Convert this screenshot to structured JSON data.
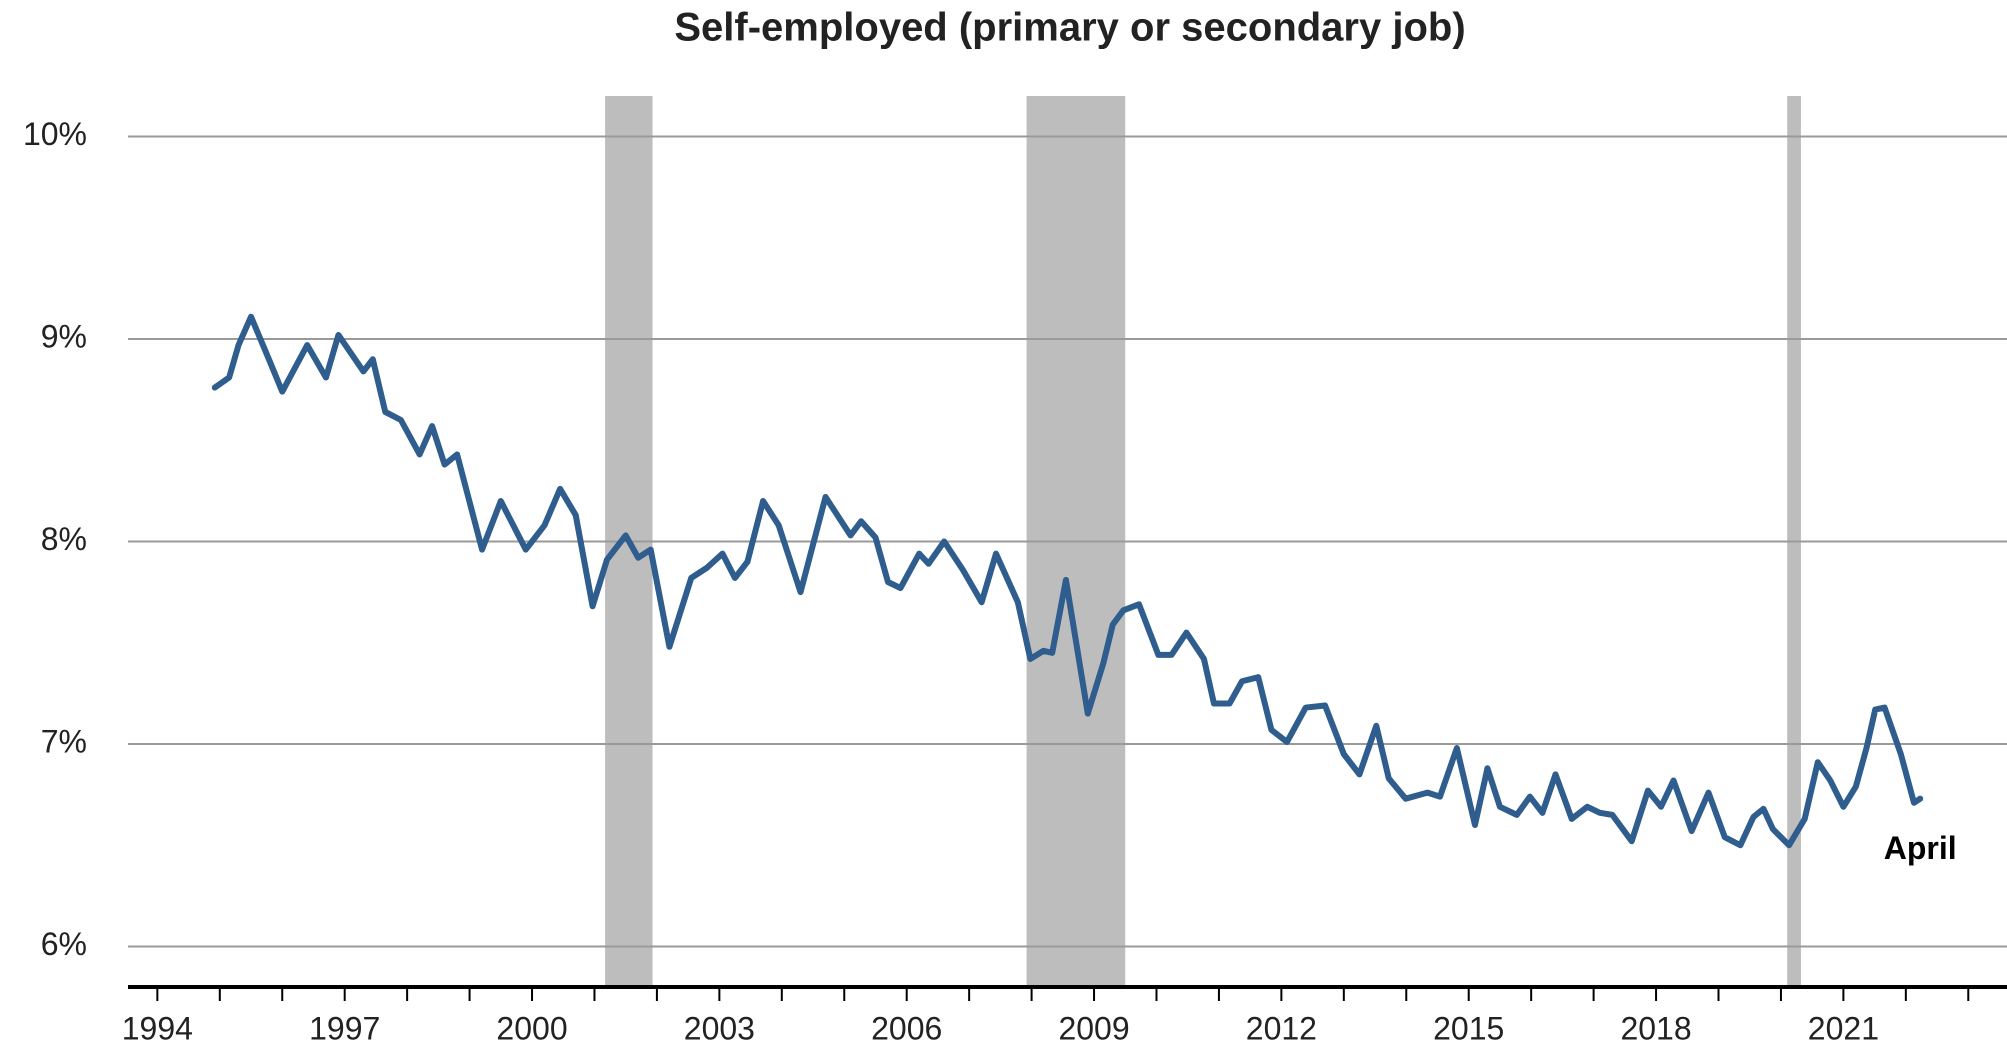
{
  "chart_data": {
    "type": "line",
    "title": "Self-employed (primary or secondary job)",
    "x": [
      1994.92,
      1995.15,
      1995.3,
      1995.5,
      1995.8,
      1996.0,
      1996.4,
      1996.7,
      1996.9,
      1997.3,
      1997.45,
      1997.65,
      1997.9,
      1998.2,
      1998.4,
      1998.6,
      1998.8,
      1999.2,
      1999.5,
      1999.9,
      2000.2,
      2000.45,
      2000.7,
      2000.97,
      2001.2,
      2001.5,
      2001.7,
      2001.9,
      2002.2,
      2002.55,
      2002.8,
      2003.05,
      2003.25,
      2003.45,
      2003.7,
      2003.95,
      2004.3,
      2004.7,
      2005.1,
      2005.27,
      2005.5,
      2005.7,
      2005.9,
      2006.2,
      2006.35,
      2006.6,
      2006.9,
      2007.2,
      2007.43,
      2007.78,
      2007.98,
      2008.19,
      2008.33,
      2008.55,
      2008.9,
      2009.15,
      2009.3,
      2009.47,
      2009.72,
      2010.03,
      2010.24,
      2010.48,
      2010.76,
      2010.92,
      2011.17,
      2011.37,
      2011.63,
      2011.84,
      2012.09,
      2012.39,
      2012.7,
      2013.0,
      2013.25,
      2013.52,
      2013.72,
      2013.99,
      2014.34,
      2014.54,
      2014.81,
      2015.1,
      2015.3,
      2015.5,
      2015.77,
      2015.98,
      2016.18,
      2016.39,
      2016.65,
      2016.9,
      2017.1,
      2017.3,
      2017.61,
      2017.87,
      2018.08,
      2018.28,
      2018.57,
      2018.84,
      2019.1,
      2019.35,
      2019.56,
      2019.72,
      2019.87,
      2020.13,
      2020.38,
      2020.59,
      2020.79,
      2021.0,
      2021.2,
      2021.37,
      2021.51,
      2021.66,
      2021.92,
      2022.13,
      2022.23
    ],
    "series": [
      {
        "color": "#2e5d8e",
        "values": [
          8.76,
          8.81,
          8.97,
          9.11,
          8.89,
          8.74,
          8.97,
          8.81,
          9.02,
          8.84,
          8.9,
          8.64,
          8.6,
          8.43,
          8.57,
          8.38,
          8.43,
          7.96,
          8.2,
          7.96,
          8.08,
          8.26,
          8.13,
          7.68,
          7.91,
          8.03,
          7.92,
          7.96,
          7.48,
          7.82,
          7.87,
          7.94,
          7.82,
          7.9,
          8.2,
          8.08,
          7.75,
          8.22,
          8.03,
          8.1,
          8.02,
          7.8,
          7.77,
          7.94,
          7.89,
          8.0,
          7.86,
          7.7,
          7.94,
          7.7,
          7.42,
          7.46,
          7.45,
          7.81,
          7.15,
          7.4,
          7.59,
          7.66,
          7.69,
          7.44,
          7.44,
          7.55,
          7.42,
          7.2,
          7.2,
          7.31,
          7.33,
          7.07,
          7.01,
          7.18,
          7.19,
          6.95,
          6.85,
          7.09,
          6.83,
          6.73,
          6.76,
          6.74,
          6.98,
          6.6,
          6.88,
          6.69,
          6.65,
          6.74,
          6.66,
          6.85,
          6.63,
          6.69,
          6.66,
          6.65,
          6.52,
          6.77,
          6.69,
          6.82,
          6.57,
          6.76,
          6.54,
          6.5,
          6.64,
          6.68,
          6.58,
          6.5,
          6.63,
          6.91,
          6.82,
          6.69,
          6.79,
          6.98,
          7.17,
          7.18,
          6.95,
          6.71,
          6.73
        ]
      }
    ],
    "recessions": [
      [
        2001.17,
        2001.93
      ],
      [
        2007.92,
        2009.5
      ],
      [
        2020.1,
        2020.32
      ]
    ],
    "annotation": "April",
    "xlim": [
      1993.53,
      2023.62
    ],
    "xticks": [
      1994,
      1997,
      2000,
      2003,
      2006,
      2009,
      2012,
      2015,
      2018,
      2021
    ],
    "xminorticks": [
      1995,
      1996,
      1998,
      1999,
      2001,
      2002,
      2004,
      2005,
      2007,
      2008,
      2010,
      2011,
      2013,
      2014,
      2016,
      2017,
      2019,
      2020,
      2022,
      2023
    ],
    "ylim": [
      5.8,
      10.2
    ],
    "yticks": [
      {
        "value": 6,
        "label": "6%"
      },
      {
        "value": 7,
        "label": "7%"
      },
      {
        "value": 8,
        "label": "8%"
      },
      {
        "value": 9,
        "label": "9%"
      },
      {
        "value": 10,
        "label": "10%"
      }
    ],
    "grid": true
  }
}
